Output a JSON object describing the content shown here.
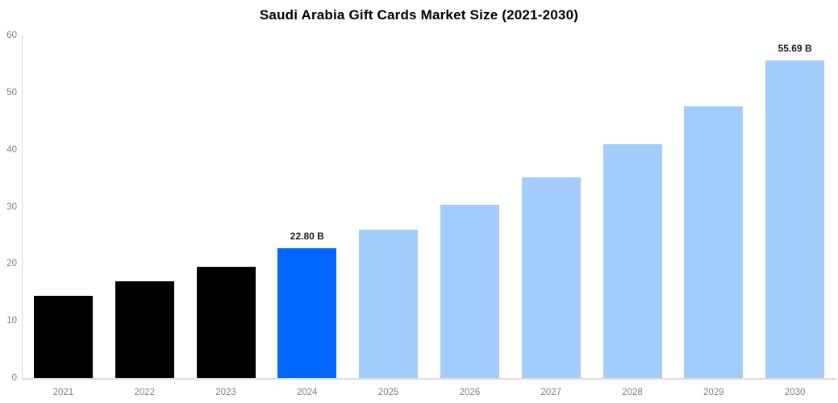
{
  "chart_data": {
    "type": "bar",
    "title": "Saudi Arabia Gift Cards Market Size (2021-2030)",
    "xlabel": "",
    "ylabel": "",
    "categories": [
      "2021",
      "2022",
      "2023",
      "2024",
      "2025",
      "2026",
      "2027",
      "2028",
      "2029",
      "2030"
    ],
    "values": [
      14.45,
      17.0,
      19.55,
      22.8,
      26.0,
      30.3,
      35.15,
      40.9,
      47.6,
      55.69
    ],
    "bar_value_labels": [
      "",
      "",
      "",
      "22.80 B",
      "",
      "",
      "",
      "",
      "",
      "55.69 B"
    ],
    "bar_color_roles": [
      "past",
      "past",
      "past",
      "current",
      "forecast",
      "forecast",
      "forecast",
      "forecast",
      "forecast",
      "forecast"
    ],
    "ylim": [
      0,
      60
    ],
    "yticks": [
      "0",
      "10",
      "20",
      "30",
      "40",
      "50",
      "60"
    ],
    "grid": false,
    "legend_position": "none",
    "colors": {
      "past": "#000000",
      "current": "#0066ff",
      "forecast": "#a2cdfa",
      "tick_label": "#808080",
      "axis_line": "#d9d9d9",
      "title": "#000000",
      "value_label": "#1a1a1a",
      "background": "#ffffff"
    }
  }
}
